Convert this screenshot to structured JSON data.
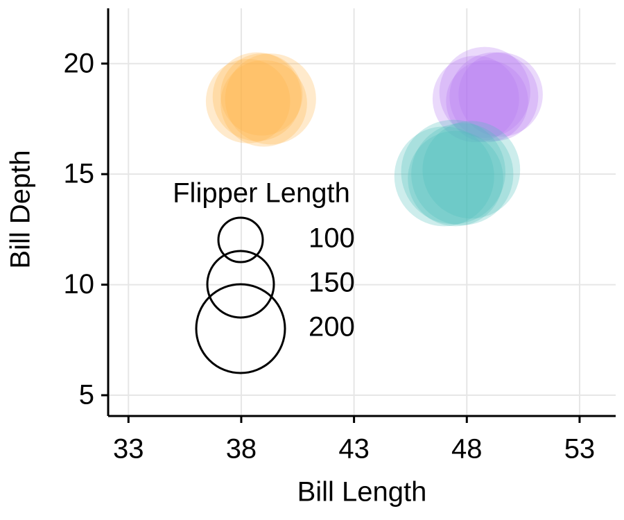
{
  "chart_data": {
    "type": "bubble",
    "x_label": "Bill Length",
    "y_label": "Bill Depth",
    "xlim": [
      32.1,
      54.6
    ],
    "ylim": [
      4.06,
      22.5
    ],
    "xticks": [
      33,
      38,
      43,
      48,
      53
    ],
    "yticks": [
      5,
      10,
      15,
      20
    ],
    "grid": true,
    "series": [
      {
        "color": "#ffb347",
        "x": [
          38.3,
          38.7,
          39.0,
          39.3,
          38.9
        ],
        "values": [
          18.3,
          18.5,
          18.2,
          18.4,
          18.6
        ],
        "sizes": [
          190,
          200,
          195,
          205,
          185
        ]
      },
      {
        "color": "#b375f0",
        "x": [
          48.4,
          48.8,
          49.2,
          49.5,
          48.9
        ],
        "values": [
          18.4,
          18.7,
          18.5,
          18.6,
          18.3
        ],
        "sizes": [
          195,
          205,
          200,
          190,
          185
        ]
      },
      {
        "color": "#4dbfbb",
        "x": [
          47.0,
          47.4,
          47.8,
          48.2,
          47.5
        ],
        "values": [
          14.9,
          15.1,
          15.0,
          15.2,
          14.8
        ],
        "sizes": [
          225,
          235,
          230,
          220,
          215
        ]
      }
    ],
    "size_legend": {
      "title": "Flipper Length",
      "values": [
        100,
        150,
        200
      ]
    }
  }
}
